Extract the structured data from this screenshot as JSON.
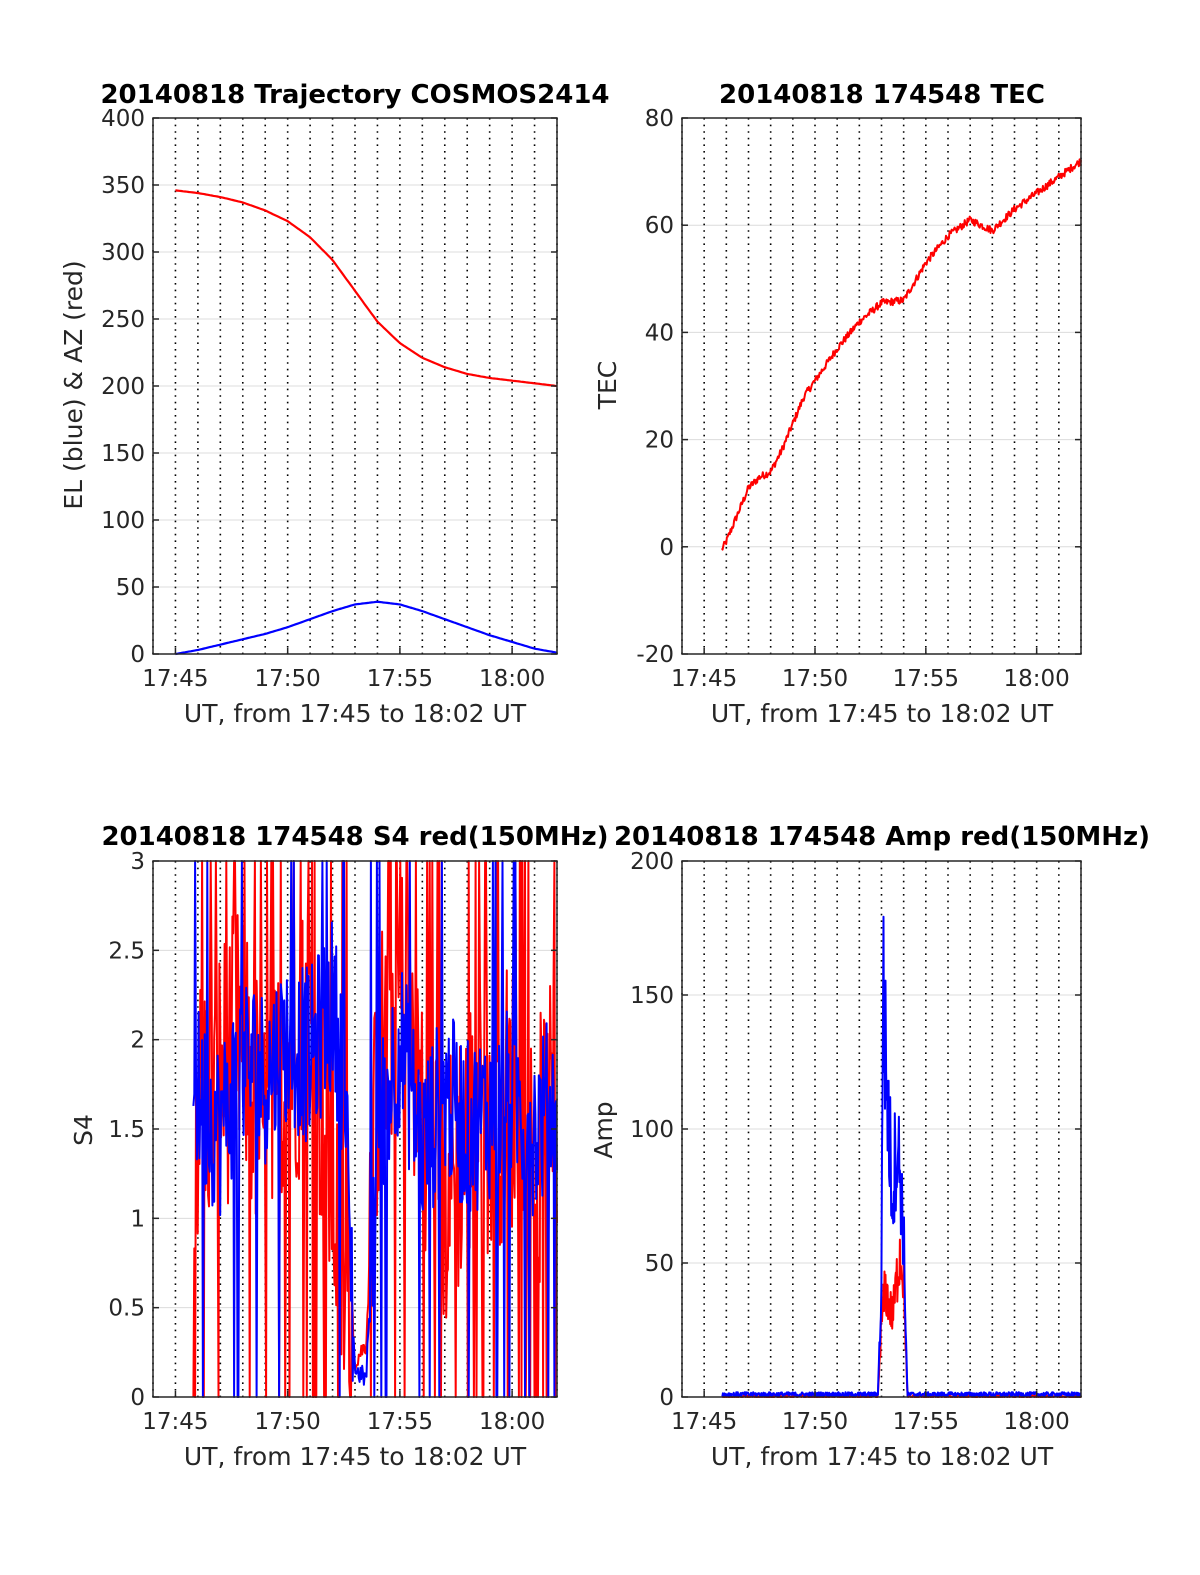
{
  "figure": {
    "background": "#ffffff",
    "colors": {
      "red": "#ff0000",
      "blue": "#0000ff",
      "axis": "#262626",
      "grid": "#dcdcdc"
    }
  },
  "chart_data": [
    {
      "type": "line",
      "title": "20140818 Trajectory COSMOS2414",
      "xlabel": "UT, from 17:45 to 18:02 UT",
      "ylabel": "EL (blue) & AZ (red)",
      "xlim": [
        "17:44",
        "18:02"
      ],
      "ylim": [
        0,
        400
      ],
      "x_ticks": [
        "17:45",
        "17:50",
        "17:55",
        "18:00"
      ],
      "y_ticks": [
        0,
        50,
        100,
        150,
        200,
        250,
        300,
        350,
        400
      ],
      "grid": "dotted vertical every minute, light horizontal at y ticks",
      "series": [
        {
          "color": "#ff0000",
          "x": [
            "17:45",
            "17:46",
            "17:47",
            "17:48",
            "17:49",
            "17:50",
            "17:51",
            "17:52",
            "17:53",
            "17:54",
            "17:55",
            "17:56",
            "17:57",
            "17:58",
            "17:59",
            "18:00",
            "18:01",
            "18:02"
          ],
          "values": [
            346,
            344,
            341,
            337,
            331,
            323,
            311,
            294,
            271,
            248,
            232,
            221,
            214,
            209,
            206,
            204,
            202,
            200
          ]
        },
        {
          "color": "#0000ff",
          "x": [
            "17:45",
            "17:46",
            "17:47",
            "17:48",
            "17:49",
            "17:50",
            "17:51",
            "17:52",
            "17:53",
            "17:54",
            "17:55",
            "17:56",
            "17:57",
            "17:58",
            "17:59",
            "18:00",
            "18:01",
            "18:02"
          ],
          "values": [
            0,
            3,
            7,
            11,
            15,
            20,
            26,
            32,
            37,
            39,
            37,
            32,
            26,
            20,
            14,
            9,
            4,
            1
          ]
        }
      ]
    },
    {
      "type": "line",
      "title": "20140818 174548 TEC",
      "xlabel": "UT, from 17:45 to 18:02 UT",
      "ylabel": "TEC",
      "xlim": [
        "17:44",
        "18:02"
      ],
      "ylim": [
        -20,
        80
      ],
      "x_ticks": [
        "17:45",
        "17:50",
        "17:55",
        "18:00"
      ],
      "y_ticks": [
        -20,
        0,
        20,
        40,
        60,
        80
      ],
      "grid": "dotted vertical every minute, light horizontal at y ticks",
      "series": [
        {
          "color": "#ff0000",
          "x": [
            "17:45:48",
            "17:46",
            "17:46:30",
            "17:47",
            "17:47:30",
            "17:48",
            "17:48:30",
            "17:49",
            "17:49:30",
            "17:50",
            "17:51",
            "17:52",
            "17:53",
            "17:54",
            "17:55",
            "17:56",
            "17:57",
            "17:58",
            "17:59",
            "18:00",
            "18:01",
            "18:02"
          ],
          "values": [
            -0.5,
            1,
            6,
            11,
            13,
            14,
            18,
            23,
            28,
            31,
            37,
            42,
            45.5,
            46,
            53,
            58,
            61,
            59,
            63,
            66,
            69,
            72
          ]
        }
      ]
    },
    {
      "type": "line",
      "title": "20140818 174548 S4 red(150MHz)",
      "xlabel": "UT, from 17:45 to 18:02 UT",
      "ylabel": "S4",
      "xlim": [
        "17:44",
        "18:02"
      ],
      "ylim": [
        0,
        3
      ],
      "x_ticks": [
        "17:45",
        "17:50",
        "17:55",
        "18:00"
      ],
      "y_ticks": [
        0,
        0.5,
        1,
        1.5,
        2,
        2.5,
        3
      ],
      "grid": "dotted vertical every minute, light horizontal at y ticks",
      "series": [
        {
          "color": "#ff0000",
          "x": [
            "17:45:48",
            "17:46",
            "17:47",
            "17:48",
            "17:49",
            "17:50",
            "17:51",
            "17:52",
            "17:52:30",
            "17:53",
            "17:53:30",
            "17:54",
            "17:55",
            "17:56",
            "17:57",
            "17:58",
            "17:59",
            "18:00",
            "18:01",
            "18:02"
          ],
          "values": [
            1.5,
            1.6,
            1.8,
            2.0,
            1.4,
            1.9,
            2.1,
            1.2,
            0.6,
            0.2,
            0.3,
            1.8,
            2.3,
            1.7,
            1.1,
            1.5,
            1.6,
            1.7,
            1.3,
            1.6
          ]
        },
        {
          "color": "#0000ff",
          "x": [
            "17:45:48",
            "17:46",
            "17:47",
            "17:48",
            "17:49",
            "17:50",
            "17:51",
            "17:52",
            "17:52:30",
            "17:53",
            "17:53:30",
            "17:54",
            "17:55",
            "17:56",
            "17:57",
            "17:58",
            "17:59",
            "18:00",
            "18:01",
            "18:02"
          ],
          "values": [
            1.8,
            1.7,
            1.5,
            1.9,
            1.8,
            2.0,
            1.9,
            2.2,
            1.8,
            0.15,
            0.1,
            1.5,
            2.0,
            1.4,
            1.7,
            1.5,
            1.6,
            1.7,
            1.5,
            1.7
          ]
        }
      ]
    },
    {
      "type": "line",
      "title": "20140818 174548 Amp red(150MHz)",
      "xlabel": "UT, from 17:45 to 18:02 UT",
      "ylabel": "Amp",
      "xlim": [
        "17:44",
        "18:02"
      ],
      "ylim": [
        0,
        200
      ],
      "x_ticks": [
        "17:45",
        "17:50",
        "17:55",
        "18:00"
      ],
      "y_ticks": [
        0,
        50,
        100,
        150,
        200
      ],
      "grid": "dotted vertical every minute, light horizontal at y ticks",
      "series": [
        {
          "color": "#ff0000",
          "x": [
            "17:45:48",
            "17:52:50",
            "17:53:00",
            "17:53:10",
            "17:53:20",
            "17:53:30",
            "17:53:40",
            "17:53:50",
            "17:54:00",
            "17:54:10",
            "18:02"
          ],
          "values": [
            0,
            0,
            28,
            40,
            35,
            30,
            42,
            55,
            45,
            0,
            0
          ]
        },
        {
          "color": "#0000ff",
          "x": [
            "17:45:48",
            "17:52:50",
            "17:53:00",
            "17:53:04",
            "17:53:10",
            "17:53:20",
            "17:53:30",
            "17:53:40",
            "17:53:50",
            "17:54:00",
            "17:54:10",
            "18:02"
          ],
          "values": [
            1,
            1,
            40,
            165,
            130,
            100,
            75,
            95,
            85,
            60,
            1,
            1
          ]
        }
      ]
    }
  ]
}
